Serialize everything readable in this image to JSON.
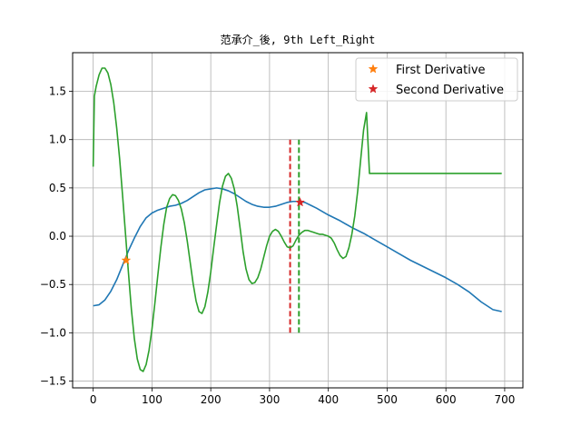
{
  "chart_data": {
    "type": "line",
    "title": "范承介_後, 9th Left_Right",
    "xlabel": "",
    "ylabel": "",
    "xlim": [
      -35,
      731
    ],
    "ylim": [
      -1.57,
      1.9
    ],
    "xticks": [
      0,
      100,
      200,
      300,
      400,
      500,
      600,
      700
    ],
    "yticks": [
      -1.5,
      -1.0,
      -0.5,
      0.0,
      0.5,
      1.0,
      1.5
    ],
    "xtick_labels": [
      "0",
      "100",
      "200",
      "300",
      "400",
      "500",
      "600",
      "700"
    ],
    "ytick_labels": [
      "−1.5",
      "−1.0",
      "−0.5",
      "0.0",
      "0.5",
      "1.0",
      "1.5"
    ],
    "grid": true,
    "legend_position": "top-right",
    "colors": {
      "blue": "#1f77b4",
      "orange": "#ff7f0e",
      "green": "#2ca02c",
      "red": "#d62728"
    },
    "series": [
      {
        "color": "#1f77b4",
        "x": [
          0,
          10,
          20,
          30,
          40,
          50,
          60,
          70,
          80,
          90,
          100,
          110,
          120,
          130,
          140,
          150,
          160,
          170,
          180,
          190,
          200,
          210,
          220,
          230,
          240,
          250,
          260,
          270,
          280,
          290,
          300,
          310,
          320,
          330,
          340,
          350,
          360,
          370,
          380,
          400,
          420,
          440,
          460,
          480,
          500,
          520,
          540,
          560,
          580,
          600,
          620,
          640,
          660,
          680,
          695
        ],
        "y": [
          -0.72,
          -0.71,
          -0.66,
          -0.57,
          -0.45,
          -0.3,
          -0.15,
          -0.02,
          0.1,
          0.19,
          0.24,
          0.27,
          0.29,
          0.31,
          0.32,
          0.34,
          0.37,
          0.41,
          0.45,
          0.48,
          0.49,
          0.5,
          0.49,
          0.47,
          0.44,
          0.4,
          0.36,
          0.33,
          0.31,
          0.3,
          0.3,
          0.31,
          0.33,
          0.35,
          0.36,
          0.36,
          0.35,
          0.32,
          0.29,
          0.22,
          0.16,
          0.09,
          0.03,
          -0.04,
          -0.11,
          -0.18,
          -0.25,
          -0.31,
          -0.37,
          -0.43,
          -0.5,
          -0.58,
          -0.68,
          -0.76,
          -0.78
        ]
      },
      {
        "color": "#2ca02c",
        "x": [
          0,
          2,
          5,
          10,
          15,
          20,
          25,
          30,
          35,
          40,
          45,
          50,
          55,
          60,
          65,
          70,
          75,
          80,
          85,
          90,
          95,
          100,
          105,
          110,
          115,
          120,
          125,
          130,
          135,
          140,
          145,
          150,
          155,
          160,
          165,
          170,
          175,
          180,
          185,
          190,
          195,
          200,
          205,
          210,
          215,
          220,
          225,
          230,
          235,
          240,
          245,
          250,
          255,
          260,
          265,
          270,
          275,
          280,
          285,
          290,
          295,
          300,
          305,
          310,
          315,
          320,
          325,
          330,
          335,
          340,
          345,
          350,
          355,
          360,
          365,
          370,
          375,
          380,
          385,
          390,
          395,
          400,
          405,
          410,
          415,
          420,
          425,
          430,
          435,
          440,
          445,
          450,
          455,
          460,
          465,
          470,
          475,
          480,
          485,
          490,
          495,
          500,
          505,
          510,
          515,
          520,
          525,
          530,
          535,
          540,
          545,
          550,
          555,
          560,
          565,
          570,
          575,
          580,
          585,
          590,
          595,
          600,
          605,
          610,
          615,
          620,
          625,
          630,
          635,
          640,
          645,
          650,
          655,
          660,
          665,
          670,
          675,
          680,
          685,
          690,
          693,
          695
        ],
        "y": [
          0.72,
          1.45,
          1.55,
          1.67,
          1.74,
          1.74,
          1.69,
          1.57,
          1.38,
          1.12,
          0.8,
          0.42,
          0.02,
          -0.38,
          -0.76,
          -1.06,
          -1.27,
          -1.38,
          -1.4,
          -1.33,
          -1.18,
          -0.96,
          -0.69,
          -0.4,
          -0.12,
          0.12,
          0.3,
          0.39,
          0.43,
          0.42,
          0.37,
          0.28,
          0.14,
          -0.05,
          -0.27,
          -0.49,
          -0.67,
          -0.78,
          -0.8,
          -0.73,
          -0.58,
          -0.37,
          -0.12,
          0.12,
          0.35,
          0.52,
          0.62,
          0.65,
          0.6,
          0.49,
          0.31,
          0.08,
          -0.16,
          -0.34,
          -0.45,
          -0.49,
          -0.48,
          -0.43,
          -0.34,
          -0.22,
          -0.1,
          0.0,
          0.05,
          0.07,
          0.05,
          0.0,
          -0.06,
          -0.11,
          -0.12,
          -0.1,
          -0.04,
          0.01,
          0.04,
          0.06,
          0.06,
          0.05,
          0.04,
          0.03,
          0.02,
          0.02,
          0.01,
          0.0,
          -0.02,
          -0.07,
          -0.14,
          -0.2,
          -0.23,
          -0.21,
          -0.12,
          0.02,
          0.21,
          0.47,
          0.79,
          1.1,
          1.28,
          0.65,
          0.65,
          0.65,
          0.65,
          0.65,
          0.65,
          0.65,
          0.65,
          0.65,
          0.65,
          0.65,
          0.65,
          0.65,
          0.65,
          0.65,
          0.65,
          0.65,
          0.65,
          0.65,
          0.65,
          0.65,
          0.65,
          0.65,
          0.65,
          0.65,
          0.65,
          0.65,
          0.65,
          0.65,
          0.65,
          0.65,
          0.65,
          0.65,
          0.65,
          0.65,
          0.65,
          0.65,
          0.65,
          0.65,
          0.65,
          0.65,
          0.65,
          0.65,
          0.65,
          0.65,
          0.65,
          0.65
        ]
      }
    ],
    "markers": [
      {
        "name": "First Derivative",
        "marker": "star",
        "color": "#ff7f0e",
        "x": 56,
        "y": -0.25
      },
      {
        "name": "Second Derivative",
        "marker": "star",
        "color": "#d62728",
        "x": 352,
        "y": 0.35
      }
    ],
    "vlines": [
      {
        "x": 335,
        "y_from": -1.0,
        "y_to": 1.0,
        "color": "#d62728",
        "style": "dashed"
      },
      {
        "x": 350,
        "y_from": -1.0,
        "y_to": 1.0,
        "color": "#2ca02c",
        "style": "dashed"
      }
    ]
  }
}
